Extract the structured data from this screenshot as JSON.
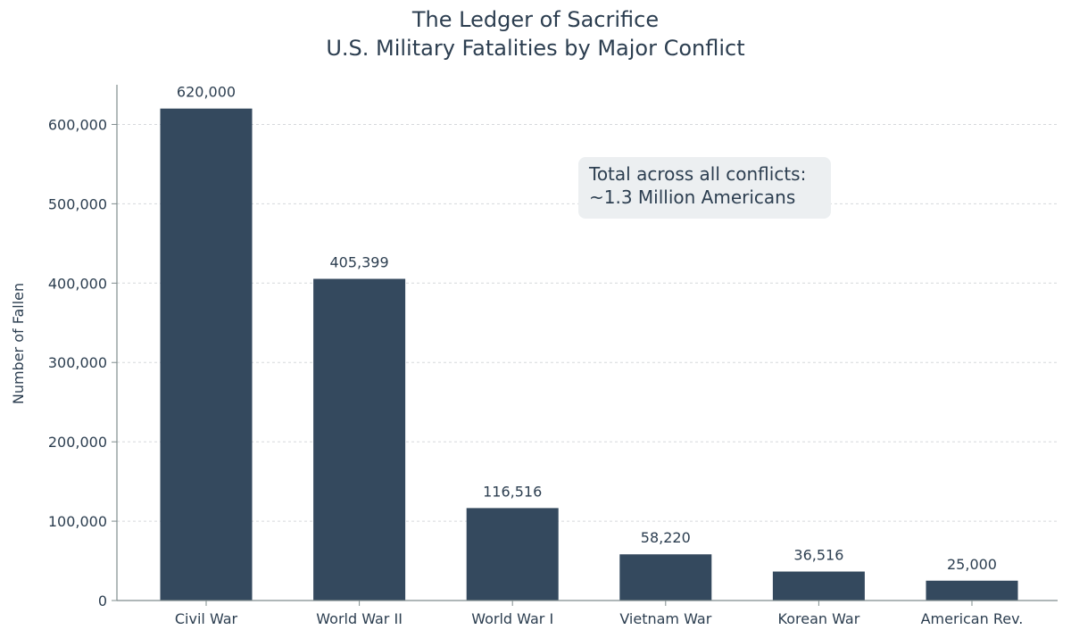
{
  "chart_data": {
    "type": "bar",
    "title_lines": [
      "The Ledger of Sacrifice",
      "U.S. Military Fatalities by Major Conflict"
    ],
    "xlabel": "",
    "ylabel": "Number of Fallen",
    "categories": [
      "Civil War",
      "World War II",
      "World War I",
      "Vietnam War",
      "Korean War",
      "American Rev."
    ],
    "values": [
      620000,
      405399,
      116516,
      58220,
      36516,
      25000
    ],
    "data_labels": [
      "620,000",
      "405,399",
      "116,516",
      "58,220",
      "36,516",
      "25,000"
    ],
    "ylim": [
      0,
      650000
    ],
    "yticks": [
      0,
      100000,
      200000,
      300000,
      400000,
      500000,
      600000
    ],
    "ytick_labels": [
      "0",
      "100,000",
      "200,000",
      "300,000",
      "400,000",
      "500,000",
      "600,000"
    ],
    "grid": true,
    "bar_color": "#34495e",
    "annotation_lines": [
      "Total across all conflicts:",
      "~1.3 Million Americans"
    ]
  }
}
